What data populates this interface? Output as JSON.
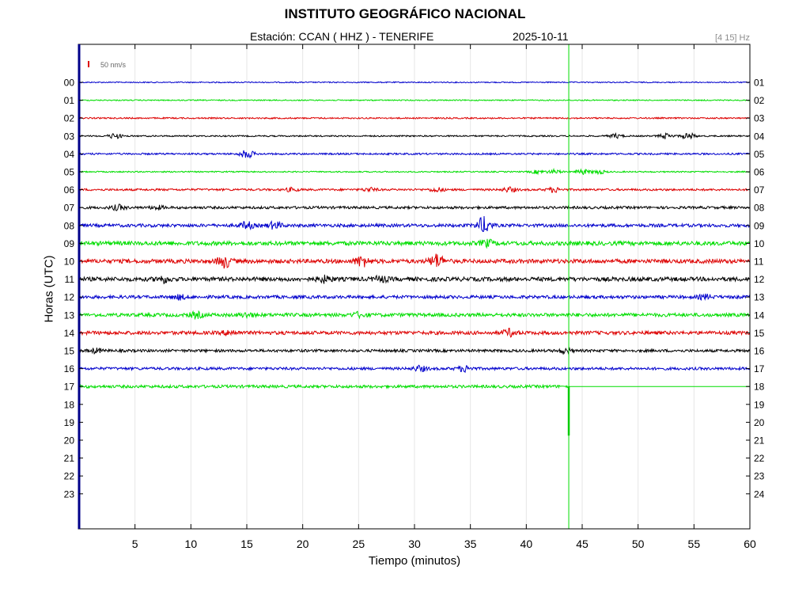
{
  "header": {
    "title": "INSTITUTO GEOGRÁFICO NACIONAL",
    "station_label": "Estación:  CCAN ( HHZ ) - TENERIFE",
    "date": "2025-10-11",
    "filter": "[4 15] Hz"
  },
  "chart_data": {
    "type": "line",
    "title": "INSTITUTO GEOGRÁFICO NACIONAL",
    "xlabel": "Tiempo (minutos)",
    "ylabel": "Horas (UTC)",
    "xlim": [
      0,
      60
    ],
    "x_ticks": [
      "5",
      "10",
      "15",
      "20",
      "25",
      "30",
      "35",
      "40",
      "45",
      "50",
      "55",
      "60"
    ],
    "left_hours": [
      "00",
      "01",
      "02",
      "03",
      "04",
      "05",
      "06",
      "07",
      "08",
      "09",
      "10",
      "11",
      "12",
      "13",
      "14",
      "15",
      "16",
      "17",
      "18",
      "19",
      "20",
      "21",
      "22",
      "23"
    ],
    "right_hours": [
      "01",
      "02",
      "03",
      "04",
      "05",
      "06",
      "07",
      "08",
      "09",
      "10",
      "11",
      "12",
      "13",
      "14",
      "15",
      "16",
      "17",
      "18",
      "19",
      "20",
      "21",
      "22",
      "23",
      "24"
    ],
    "scale_label": "50 nm/s",
    "grid": "vertical",
    "current_time_marker_minutes": 43.8,
    "trace_colors": [
      "#0000cc",
      "#00dd00",
      "#dd0000",
      "#000000"
    ],
    "traces": [
      {
        "hour": "00",
        "noise": 0.7,
        "events": []
      },
      {
        "hour": "01",
        "noise": 0.7,
        "events": []
      },
      {
        "hour": "02",
        "noise": 0.9,
        "events": []
      },
      {
        "hour": "03",
        "noise": 0.9,
        "events": [
          {
            "t": 3.2,
            "amp": 3
          },
          {
            "t": 48,
            "amp": 2.5
          },
          {
            "t": 52.5,
            "amp": 3
          },
          {
            "t": 54.5,
            "amp": 3.5
          }
        ]
      },
      {
        "hour": "04",
        "noise": 1.1,
        "events": [
          {
            "t": 15,
            "amp": 5
          }
        ]
      },
      {
        "hour": "05",
        "noise": 0.8,
        "events": [
          {
            "t": 41,
            "amp": 2
          },
          {
            "t": 42.5,
            "amp": 2.5
          },
          {
            "t": 45,
            "amp": 3
          },
          {
            "t": 46.5,
            "amp": 2.5
          }
        ]
      },
      {
        "hour": "06",
        "noise": 1.3,
        "events": [
          {
            "t": 19,
            "amp": 2
          },
          {
            "t": 26,
            "amp": 2
          },
          {
            "t": 32,
            "amp": 2.5
          },
          {
            "t": 38.5,
            "amp": 2.8
          },
          {
            "t": 42.5,
            "amp": 2.8
          }
        ]
      },
      {
        "hour": "07",
        "noise": 1.6,
        "events": [
          {
            "t": 3.5,
            "amp": 3
          },
          {
            "t": 7,
            "amp": 2
          }
        ]
      },
      {
        "hour": "08",
        "noise": 2.0,
        "events": [
          {
            "t": 15,
            "amp": 4
          },
          {
            "t": 17.5,
            "amp": 4
          },
          {
            "t": 36.2,
            "amp": 10
          }
        ]
      },
      {
        "hour": "09",
        "noise": 2.6,
        "events": [
          {
            "t": 36.5,
            "amp": 3.5
          }
        ]
      },
      {
        "hour": "10",
        "noise": 2.6,
        "events": [
          {
            "t": 13,
            "amp": 7
          },
          {
            "t": 25.3,
            "amp": 6
          },
          {
            "t": 32,
            "amp": 8
          }
        ]
      },
      {
        "hour": "11",
        "noise": 2.6,
        "events": [
          {
            "t": 7.5,
            "amp": 3.5
          },
          {
            "t": 22,
            "amp": 3.5
          },
          {
            "t": 27,
            "amp": 3
          }
        ]
      },
      {
        "hour": "12",
        "noise": 2.0,
        "events": [
          {
            "t": 9,
            "amp": 2.5
          },
          {
            "t": 56,
            "amp": 2.5
          }
        ]
      },
      {
        "hour": "13",
        "noise": 2.2,
        "events": [
          {
            "t": 10.5,
            "amp": 3
          },
          {
            "t": 15,
            "amp": 2.5
          },
          {
            "t": 25,
            "amp": 2.5
          }
        ]
      },
      {
        "hour": "14",
        "noise": 2.2,
        "events": [
          {
            "t": 13.5,
            "amp": 3
          },
          {
            "t": 38.5,
            "amp": 4
          }
        ]
      },
      {
        "hour": "15",
        "noise": 1.7,
        "events": [
          {
            "t": 1.5,
            "amp": 2.5
          },
          {
            "t": 43.5,
            "amp": 2.5
          }
        ]
      },
      {
        "hour": "16",
        "noise": 1.7,
        "events": [
          {
            "t": 30.5,
            "amp": 3
          },
          {
            "t": 34.5,
            "amp": 3.5
          }
        ]
      },
      {
        "hour": "17",
        "noise": 1.8,
        "events": [],
        "end_minute": 43.8
      }
    ]
  }
}
